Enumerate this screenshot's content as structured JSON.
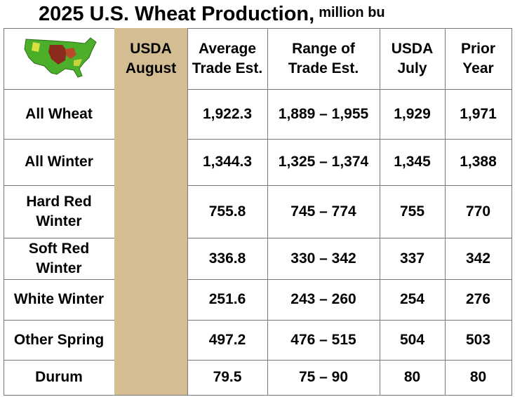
{
  "header": {
    "title": "2025 U.S. Wheat Production,",
    "unit": "million bu"
  },
  "table": {
    "columns": [
      [
        "USDA",
        "August"
      ],
      [
        "Average",
        "Trade Est."
      ],
      [
        "Range of",
        "Trade Est."
      ],
      [
        "USDA",
        "July"
      ],
      [
        "Prior",
        "Year"
      ]
    ],
    "rows": [
      {
        "label": [
          "All Wheat"
        ],
        "cells": [
          "1,922.3",
          "1,889 – 1,955",
          "1,929",
          "1,971"
        ]
      },
      {
        "label": [
          "All Winter"
        ],
        "cells": [
          "1,344.3",
          "1,325 – 1,374",
          "1,345",
          "1,388"
        ]
      },
      {
        "label": [
          "Hard Red",
          "Winter"
        ],
        "cells": [
          "755.8",
          "745 – 774",
          "755",
          "770"
        ]
      },
      {
        "label": [
          "Soft Red",
          "Winter"
        ],
        "cells": [
          "336.8",
          "330 – 342",
          "337",
          "342"
        ]
      },
      {
        "label": [
          "White Winter"
        ],
        "cells": [
          "251.6",
          "243 – 260",
          "254",
          "276"
        ]
      },
      {
        "label": [
          "Other Spring"
        ],
        "cells": [
          "497.2",
          "476 – 515",
          "504",
          "503"
        ]
      },
      {
        "label": [
          "Durum"
        ],
        "cells": [
          "79.5",
          "75 – 90",
          "80",
          "80"
        ]
      }
    ]
  }
}
